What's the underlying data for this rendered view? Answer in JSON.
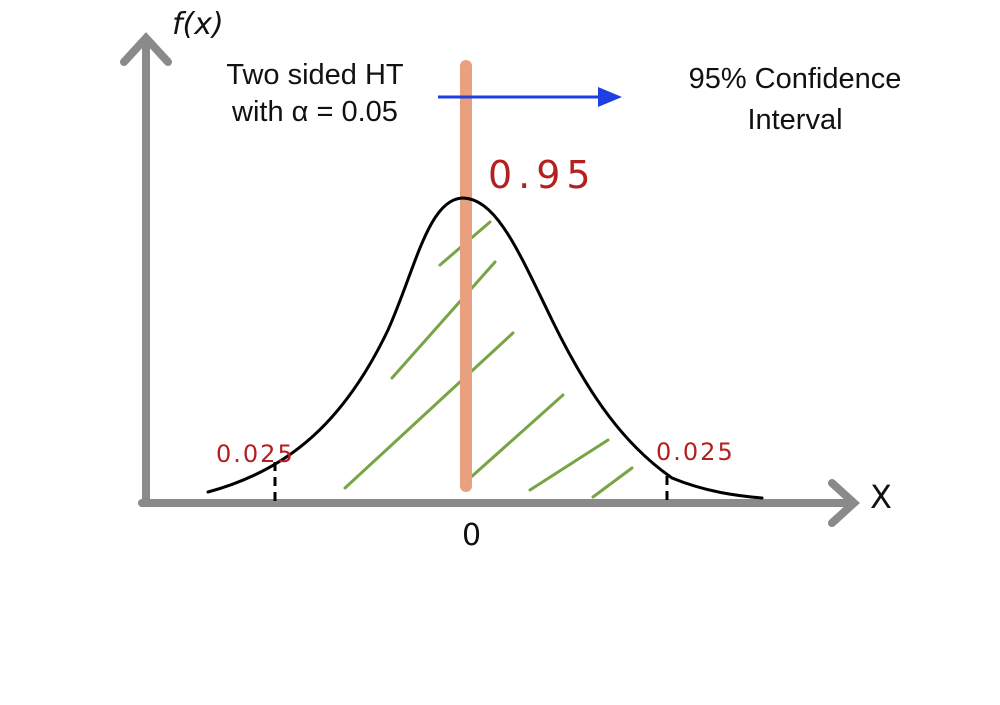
{
  "y_axis_label": "f(x)",
  "x_axis_label": "X",
  "center_tick_label": "0",
  "annotation_left": {
    "line1": "Two sided HT",
    "line2": "with α = 0.05"
  },
  "annotation_right": {
    "line1": "95% Confidence",
    "line2": "Interval"
  },
  "center_area_label": "0.95",
  "left_tail_label": "0.025",
  "right_tail_label": "0.025",
  "colors": {
    "axis": "#8a8a8a",
    "curve": "#000000",
    "center_bar": "#e8a07e",
    "hatch": "#77a444",
    "arrow": "#1f3fe0",
    "probability_text": "#b51f1f",
    "printed_text": "#111111"
  }
}
